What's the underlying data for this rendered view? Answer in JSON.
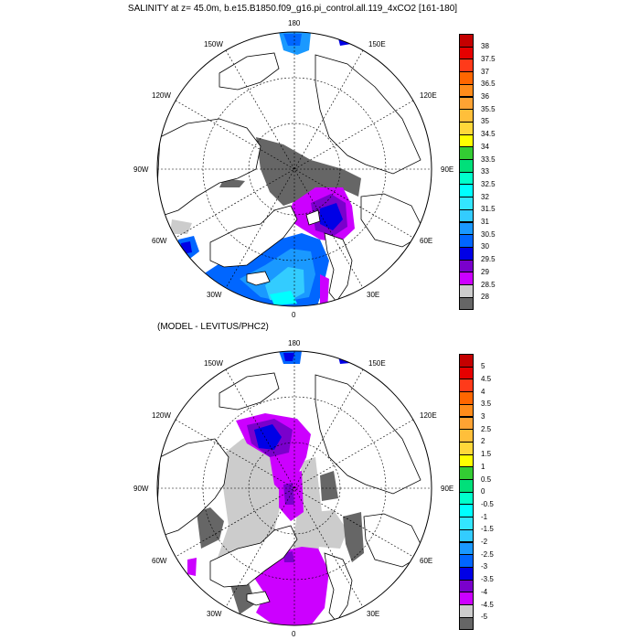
{
  "map1": {
    "title": "SALINITY at z=  45.0m, b.e15.B1850.f09_g16.pi_control.all.119_4xCO2 [161-180]",
    "lon_labels": {
      "top": "180",
      "bottom": "0",
      "left": "90W",
      "right": "90E",
      "ul1": "150W",
      "ul2": "120W",
      "ll1": "60W",
      "ll2": "30W",
      "ur1": "150E",
      "ur2": "120E",
      "lr1": "60E",
      "lr2": "30E"
    },
    "colorbar": {
      "labels": [
        "38",
        "37.5",
        "37",
        "36.5",
        "36",
        "35.5",
        "35",
        "34.5",
        "34",
        "33.5",
        "33",
        "32.5",
        "32",
        "31.5",
        "31",
        "30.5",
        "30",
        "29.5",
        "29",
        "28.5",
        "28"
      ],
      "colors": [
        "#c40000",
        "#e60000",
        "#ff3a1a",
        "#ff6600",
        "#ff8c1a",
        "#ffa333",
        "#ffbf3a",
        "#ffd83a",
        "#ffff00",
        "#33cc33",
        "#00e07a",
        "#00ffcc",
        "#00ffff",
        "#33e6ff",
        "#33ccff",
        "#1a99ff",
        "#0066ff",
        "#0000e6",
        "#7a00cc",
        "#cc00ff",
        "#cccccc",
        "#666666"
      ]
    }
  },
  "map2": {
    "title": "(MODEL - LEVITUS/PHC2)",
    "lon_labels": {
      "top": "180",
      "bottom": "0",
      "left": "90W",
      "right": "90E",
      "ul1": "150W",
      "ul2": "120W",
      "ll1": "60W",
      "ll2": "30W",
      "ur1": "150E",
      "ur2": "120E",
      "lr1": "60E",
      "lr2": "30E"
    },
    "colorbar": {
      "labels": [
        "5",
        "4.5",
        "4",
        "3.5",
        "3",
        "2.5",
        "2",
        "1.5",
        "1",
        "0.5",
        "0",
        "-0.5",
        "-1",
        "-1.5",
        "-2",
        "-2.5",
        "-3",
        "-3.5",
        "-4",
        "-4.5",
        "-5"
      ],
      "colors": [
        "#c40000",
        "#e60000",
        "#ff3a1a",
        "#ff6600",
        "#ff8c1a",
        "#ffa333",
        "#ffbf3a",
        "#ffd83a",
        "#ffff00",
        "#33cc33",
        "#00e07a",
        "#00ffcc",
        "#00ffff",
        "#33e6ff",
        "#33ccff",
        "#1a99ff",
        "#0066ff",
        "#0000e6",
        "#7a00cc",
        "#cc00ff",
        "#cccccc",
        "#666666"
      ]
    }
  }
}
